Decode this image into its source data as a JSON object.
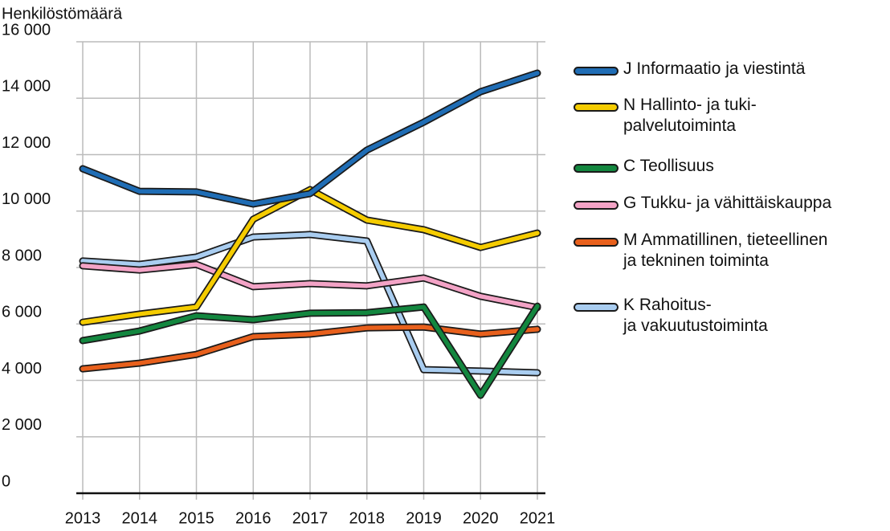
{
  "chart_data": {
    "type": "line",
    "y_label": "Henkilöstömäärä",
    "x": [
      2013,
      2014,
      2015,
      2016,
      2017,
      2018,
      2019,
      2020,
      2021
    ],
    "xlim": [
      2013,
      2021
    ],
    "xticks": [
      2013,
      2014,
      2015,
      2016,
      2017,
      2018,
      2019,
      2020,
      2021
    ],
    "ylim": [
      0,
      16000
    ],
    "yticks": [
      {
        "value": 0,
        "label": "0"
      },
      {
        "value": 2000,
        "label": "2 000"
      },
      {
        "value": 4000,
        "label": "4 000"
      },
      {
        "value": 6000,
        "label": "6 000"
      },
      {
        "value": 8000,
        "label": "8 000"
      },
      {
        "value": 10000,
        "label": "10 000"
      },
      {
        "value": 12000,
        "label": "12 000"
      },
      {
        "value": 14000,
        "label": "14 000"
      },
      {
        "value": 16000,
        "label": "16 000"
      }
    ],
    "grid": true,
    "legend": "right",
    "series": [
      {
        "name": "J Informaatio ja viestintä",
        "color": "#1f6db5",
        "values": [
          11500,
          10700,
          10680,
          10250,
          10620,
          12160,
          13150,
          14230,
          14890
        ]
      },
      {
        "name": "N Hallinto- ja tuki-\npalvelutoiminta",
        "color": "#f5cc00",
        "values": [
          6060,
          6350,
          6600,
          9710,
          10760,
          9680,
          9340,
          8710,
          9220
        ]
      },
      {
        "name": "C Teollisuus",
        "color": "#13873f",
        "values": [
          5410,
          5750,
          6290,
          6150,
          6380,
          6400,
          6600,
          3470,
          6630
        ]
      },
      {
        "name": "G Tukku- ja vähittäiskauppa",
        "color": "#f3a3c6",
        "values": [
          8060,
          7910,
          8110,
          7320,
          7430,
          7350,
          7630,
          6980,
          6580
        ]
      },
      {
        "name": "M Ammatillinen, tieteellinen\nja tekninen toiminta",
        "color": "#e8601c",
        "values": [
          4410,
          4610,
          4920,
          5550,
          5640,
          5860,
          5890,
          5640,
          5810
        ]
      },
      {
        "name": "K Rahoitus-\nja vakuutustoiminta",
        "color": "#a9cdf0",
        "values": [
          8230,
          8110,
          8370,
          9080,
          9170,
          8940,
          4380,
          4330,
          4270
        ]
      }
    ]
  }
}
